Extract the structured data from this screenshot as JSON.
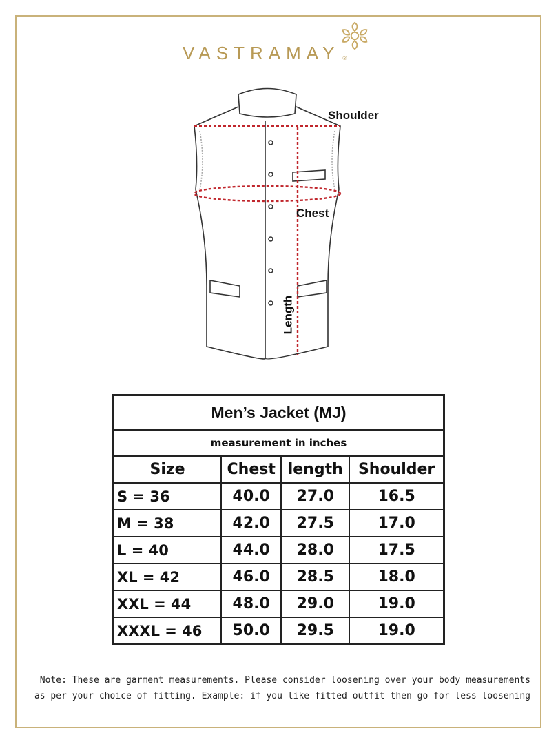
{
  "brand": {
    "name": "VASTRAMAY",
    "registered": "®",
    "color": "#b89a56"
  },
  "diagram": {
    "labels": {
      "shoulder": "Shoulder",
      "chest": "Chest",
      "length": "Length"
    },
    "measure_line_color": "#c0262c"
  },
  "table": {
    "title": "Men’s Jacket (MJ)",
    "subtitle": "measurement in inches",
    "headers": [
      "Size",
      "Chest",
      "length",
      "Shoulder"
    ],
    "rows": [
      [
        "S = 36",
        "40.0",
        "27.0",
        "16.5"
      ],
      [
        "M = 38",
        "42.0",
        "27.5",
        "17.0"
      ],
      [
        "L = 40",
        "44.0",
        "28.0",
        "17.5"
      ],
      [
        "XL = 42",
        "46.0",
        "28.5",
        "18.0"
      ],
      [
        "XXL = 44",
        "48.0",
        "29.0",
        "19.0"
      ],
      [
        "XXXL = 46",
        "50.0",
        "29.5",
        "19.0"
      ]
    ]
  },
  "note": {
    "line1": "Note: These are garment measurements. Please consider loosening over your body measurements",
    "line2": "as per your choice of fitting. Example: if you like fitted outfit then go for less loosening"
  }
}
